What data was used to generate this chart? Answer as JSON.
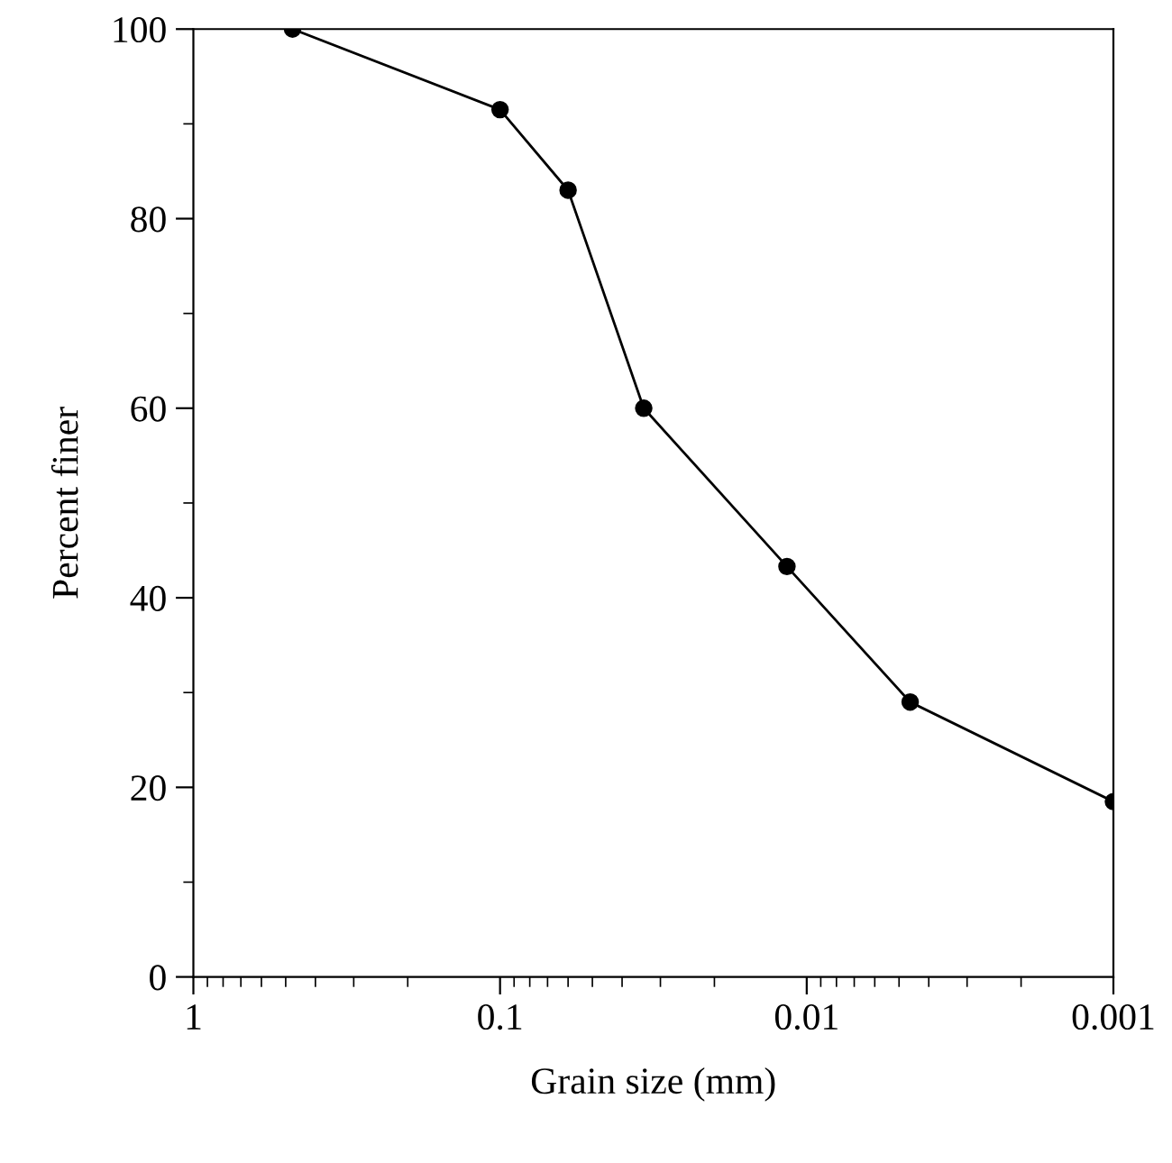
{
  "chart_data": {
    "type": "line",
    "xlabel": "Grain size (mm)",
    "ylabel": "Percent finer",
    "series": [
      {
        "color": "#000000",
        "x": [
          0.475,
          0.1,
          0.06,
          0.034,
          0.0116,
          0.0046,
          0.001
        ],
        "values": [
          100,
          91.5,
          83,
          60,
          43.3,
          29,
          18.5
        ]
      }
    ],
    "log": "x",
    "xlim": [
      1,
      0.001
    ],
    "xticks": [
      1,
      0.1,
      0.01,
      0.001
    ],
    "ylim": [
      0,
      100
    ],
    "yticks": [
      0,
      20,
      40,
      60,
      80,
      100
    ],
    "marker": "circle",
    "line_style": "solid",
    "grid": false,
    "legend": false
  }
}
